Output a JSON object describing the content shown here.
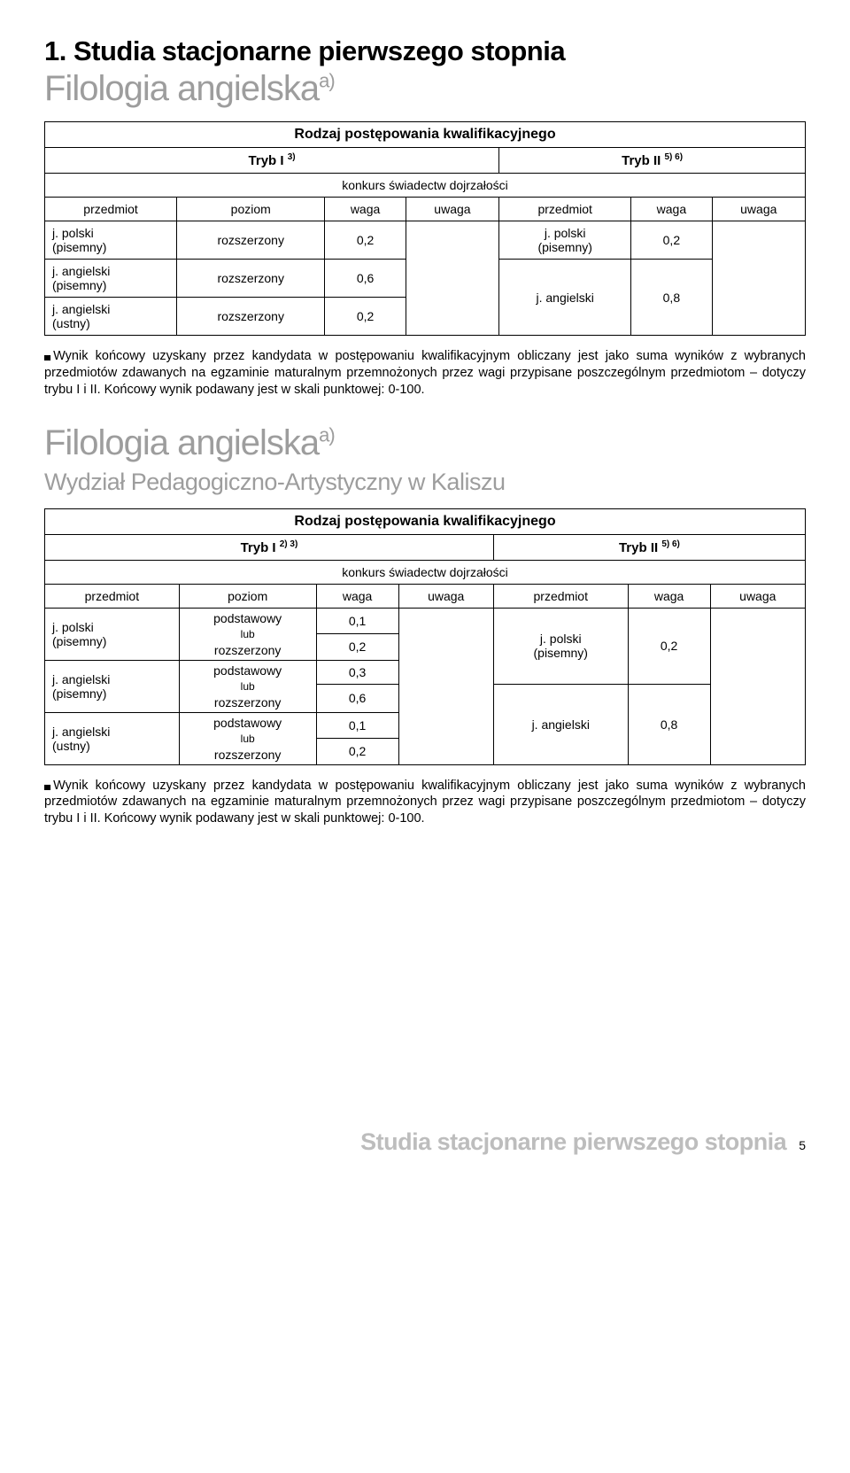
{
  "section_title": "1. Studia stacjonarne pierwszego stopnia",
  "program1": {
    "title_main": "Filologia angielska",
    "title_super": "a)",
    "heading": "Rodzaj postępowania kwalifikacyjnego",
    "tryb_i_label": "Tryb I ",
    "tryb_i_sup": "3)",
    "tryb_ii_label": "Tryb II ",
    "tryb_ii_sup": "5) 6)",
    "konkurs": "konkurs świadectw dojrzałości",
    "cols": [
      "przedmiot",
      "poziom",
      "waga",
      "uwaga",
      "przedmiot",
      "waga",
      "uwaga"
    ],
    "rows_left": [
      {
        "subject": "j. polski\n(pisemny)",
        "level": "rozszerzony",
        "weight": "0,2"
      },
      {
        "subject": "j. angielski\n(pisemny)",
        "level": "rozszerzony",
        "weight": "0,6"
      },
      {
        "subject": "j. angielski\n(ustny)",
        "level": "rozszerzony",
        "weight": "0,2"
      }
    ],
    "rows_right": [
      {
        "subject": "j. polski\n(pisemny)",
        "weight": "0,2"
      },
      {
        "subject": "j. angielski",
        "weight": "0,8"
      }
    ],
    "note": "Wynik końcowy uzyskany przez kandydata w postępowaniu kwalifikacyjnym obliczany jest jako suma wyników z wybranych przedmiotów zdawanych na egzaminie maturalnym przemnożonych przez wagi przypisane poszczególnym przedmiotom – dotyczy trybu I i II. Końcowy wynik podawany jest w skali punktowej: 0-100."
  },
  "program2": {
    "title_main": "Filologia angielska",
    "title_super": "a)",
    "subfaculty": "Wydział Pedagogiczno-Artystyczny w Kaliszu",
    "heading": "Rodzaj postępowania kwalifikacyjnego",
    "tryb_i_label": "Tryb I ",
    "tryb_i_sup": "2) 3)",
    "tryb_ii_label": "Tryb II ",
    "tryb_ii_sup": "5) 6)",
    "konkurs": "konkurs świadectw dojrzałości",
    "cols": [
      "przedmiot",
      "poziom",
      "waga",
      "uwaga",
      "przedmiot",
      "waga",
      "uwaga"
    ],
    "left_rows": [
      {
        "subject": "j. polski\n(pisemny)",
        "level_top": "podstawowy",
        "lub": "lub",
        "level_bot": "rozszerzony",
        "w_top": "0,1",
        "w_bot": "0,2"
      },
      {
        "subject": "j. angielski\n(pisemny)",
        "level_top": "podstawowy",
        "lub": "lub",
        "level_bot": "rozszerzony",
        "w_top": "0,3",
        "w_bot": "0,6"
      },
      {
        "subject": "j. angielski\n(ustny)",
        "level_top": "podstawowy",
        "lub": "lub",
        "level_bot": "rozszerzony",
        "w_top": "0,1",
        "w_bot": "0,2"
      }
    ],
    "right_rows": [
      {
        "subject": "j. polski\n(pisemny)",
        "weight": "0,2"
      },
      {
        "subject": "j. angielski",
        "weight": "0,8"
      }
    ],
    "note": "Wynik końcowy uzyskany przez kandydata w postępowaniu kwalifikacyjnym obliczany jest jako suma wyników z wybranych przedmiotów zdawanych na egzaminie maturalnym przemnożonych przez wagi przypisane poszczególnym przedmiotom – dotyczy trybu I i II. Końcowy wynik podawany jest w skali punktowej: 0-100."
  },
  "footer_title": "Studia stacjonarne pierwszego stopnia",
  "footer_page": "5"
}
